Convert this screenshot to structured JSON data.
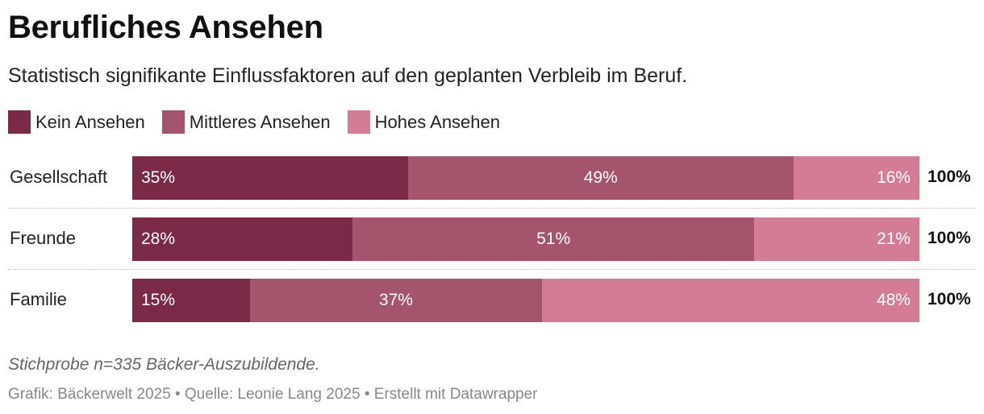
{
  "header": {
    "title": "Berufliches Ansehen",
    "subtitle": "Statistisch signifikante Einflussfaktoren auf den geplanten Verbleib im Beruf."
  },
  "colors": {
    "kein": "#7a2a46",
    "mittleres": "#a5546e",
    "hohes": "#d47c96"
  },
  "chart_data": {
    "type": "bar",
    "orientation": "horizontal",
    "stacked": true,
    "categories": [
      "Gesellschaft",
      "Freunde",
      "Familie"
    ],
    "series": [
      {
        "name": "Kein Ansehen",
        "values": [
          35,
          28,
          15
        ],
        "labels": [
          "35%",
          "28%",
          "15%"
        ]
      },
      {
        "name": "Mittleres Ansehen",
        "values": [
          49,
          51,
          37
        ],
        "labels": [
          "49%",
          "51%",
          "37%"
        ]
      },
      {
        "name": "Hohes Ansehen",
        "values": [
          16,
          21,
          48
        ],
        "labels": [
          "16%",
          "21%",
          "48%"
        ]
      }
    ],
    "totals": [
      "100%",
      "100%",
      "100%"
    ],
    "xlim": [
      0,
      100
    ],
    "legend_position": "top-left",
    "grid": false
  },
  "notes": {
    "sample": "Stichprobe n=335 Bäcker-Auszubildende.",
    "footer": "Grafik: Bäckerwelt 2025 • Quelle: Leonie Lang 2025 • Erstellt mit Datawrapper"
  }
}
